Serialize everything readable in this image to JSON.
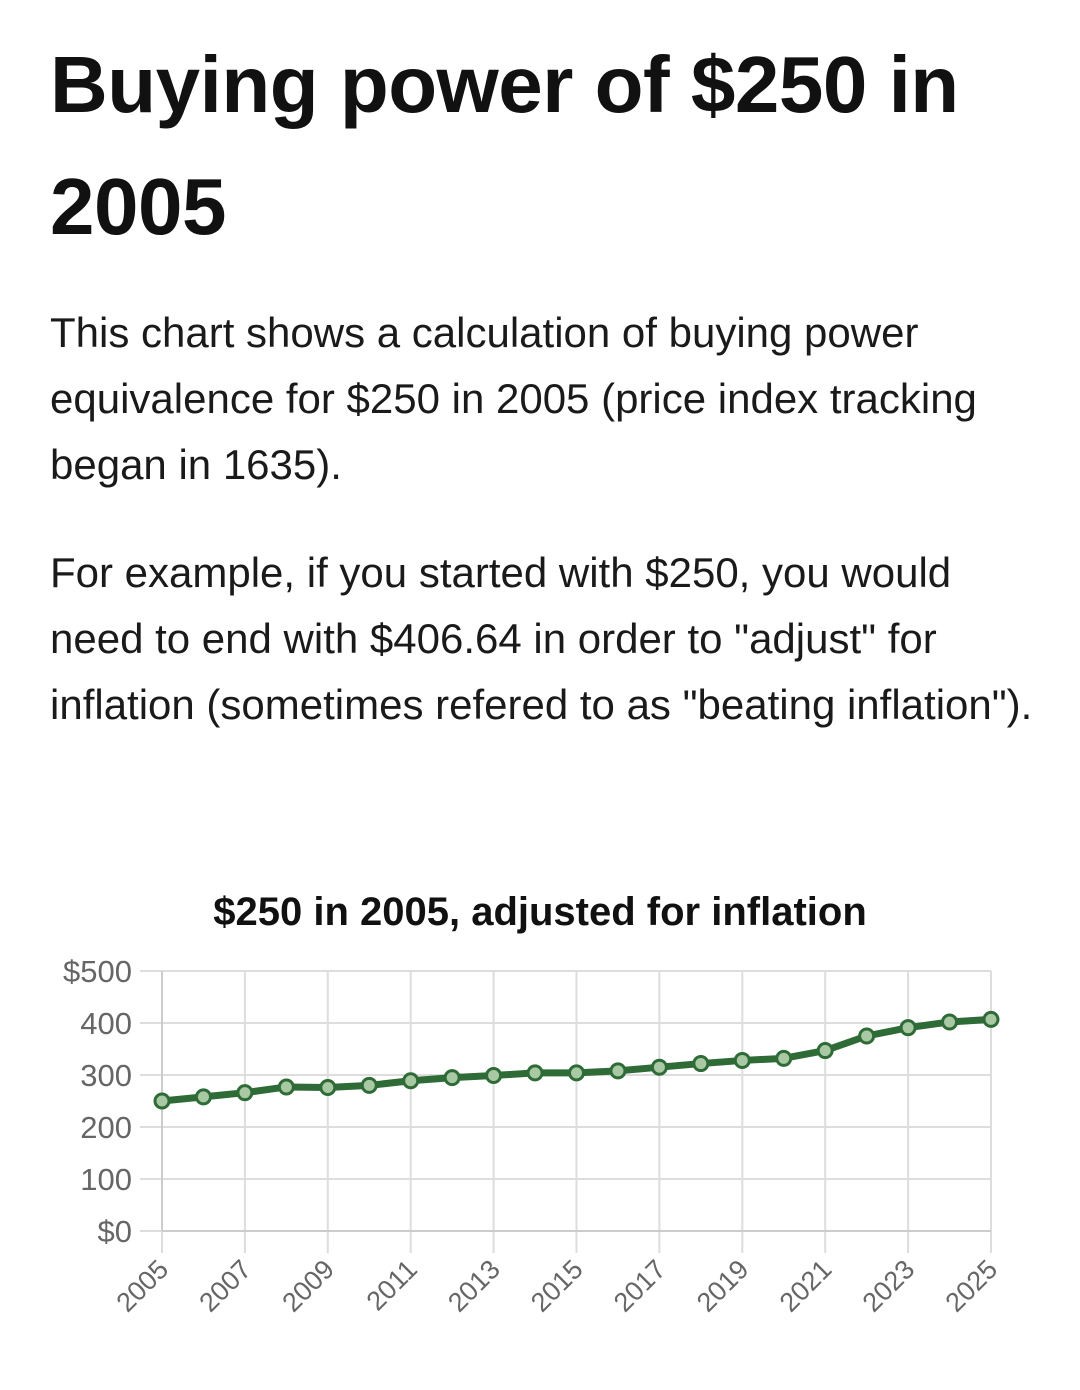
{
  "heading": "Buying power of $250 in 2005",
  "paragraph1": "This chart shows a calculation of buying power equivalence for $250 in 2005 (price index tracking began in 1635).",
  "paragraph2": "For example, if you started with $250, you would need to end with $406.64 in order to \"adjust\" for inflation (sometimes refered to as \"beating inflation\").",
  "colors": {
    "line": "#2e6b37",
    "marker_fill": "#a9c8a4",
    "grid": "#dddddd"
  },
  "chart_data": {
    "type": "line",
    "title": "$250 in 2005, adjusted for inflation",
    "xlabel": "",
    "ylabel": "",
    "x": [
      2005,
      2006,
      2007,
      2008,
      2009,
      2010,
      2011,
      2012,
      2013,
      2014,
      2015,
      2016,
      2017,
      2018,
      2019,
      2020,
      2021,
      2022,
      2023,
      2024,
      2025
    ],
    "values": [
      250,
      258,
      266,
      277,
      276,
      280,
      289,
      295,
      299,
      304,
      304,
      308,
      315,
      322,
      328,
      332,
      347,
      375,
      391,
      402,
      407
    ],
    "ylim": [
      0,
      500
    ],
    "yticks": [
      0,
      100,
      200,
      300,
      400,
      500
    ],
    "ytick_labels": [
      "$0",
      "100",
      "200",
      "300",
      "400",
      "$500"
    ],
    "xtick_labels": [
      "2005",
      "2007",
      "2009",
      "2011",
      "2013",
      "2015",
      "2017",
      "2019",
      "2021",
      "2023",
      "2025"
    ],
    "grid": true,
    "legend": "none"
  }
}
